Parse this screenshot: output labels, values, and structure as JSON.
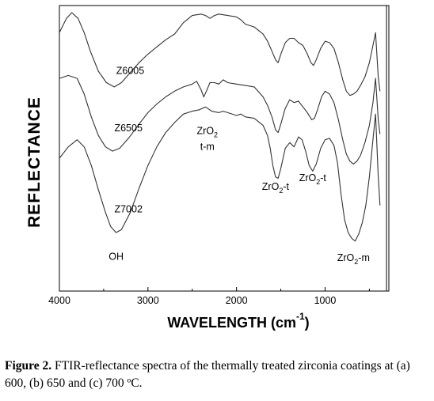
{
  "chart_data": {
    "type": "line",
    "xlabel_main": "WAVELENGTH (cm",
    "xlabel_sup": "-1",
    "xlabel_close": ")",
    "ylabel": "REFLECTANCE",
    "xlim": [
      4000,
      280
    ],
    "x_ticks": [
      4000,
      3000,
      2000,
      1000
    ],
    "x_tick_labels": [
      "4000",
      "3000",
      "2000",
      "1000"
    ],
    "y_ticks_shown": false,
    "grid": false,
    "series": [
      {
        "name": "Z6005",
        "points": [
          [
            4000,
            0.905
          ],
          [
            3920,
            0.955
          ],
          [
            3860,
            0.975
          ],
          [
            3790,
            0.955
          ],
          [
            3720,
            0.905
          ],
          [
            3650,
            0.84
          ],
          [
            3560,
            0.77
          ],
          [
            3470,
            0.73
          ],
          [
            3380,
            0.715
          ],
          [
            3300,
            0.73
          ],
          [
            3200,
            0.765
          ],
          [
            3100,
            0.8
          ],
          [
            3000,
            0.83
          ],
          [
            2900,
            0.855
          ],
          [
            2800,
            0.88
          ],
          [
            2700,
            0.9
          ],
          [
            2600,
            0.94
          ],
          [
            2500,
            0.965
          ],
          [
            2400,
            0.97
          ],
          [
            2350,
            0.965
          ],
          [
            2300,
            0.955
          ],
          [
            2250,
            0.965
          ],
          [
            2200,
            0.97
          ],
          [
            2100,
            0.965
          ],
          [
            2000,
            0.96
          ],
          [
            1950,
            0.95
          ],
          [
            1900,
            0.935
          ],
          [
            1800,
            0.925
          ],
          [
            1700,
            0.9
          ],
          [
            1650,
            0.875
          ],
          [
            1600,
            0.84
          ],
          [
            1560,
            0.81
          ],
          [
            1530,
            0.8
          ],
          [
            1500,
            0.83
          ],
          [
            1450,
            0.87
          ],
          [
            1400,
            0.885
          ],
          [
            1350,
            0.885
          ],
          [
            1300,
            0.87
          ],
          [
            1250,
            0.86
          ],
          [
            1200,
            0.83
          ],
          [
            1160,
            0.8
          ],
          [
            1130,
            0.79
          ],
          [
            1100,
            0.81
          ],
          [
            1050,
            0.85
          ],
          [
            1000,
            0.875
          ],
          [
            950,
            0.87
          ],
          [
            900,
            0.85
          ],
          [
            850,
            0.8
          ],
          [
            800,
            0.74
          ],
          [
            760,
            0.7
          ],
          [
            720,
            0.685
          ],
          [
            680,
            0.69
          ],
          [
            640,
            0.7
          ],
          [
            600,
            0.72
          ],
          [
            550,
            0.75
          ],
          [
            500,
            0.8
          ],
          [
            460,
            0.86
          ],
          [
            430,
            0.905
          ],
          [
            400,
            0.75
          ],
          [
            380,
            0.7
          ]
        ]
      },
      {
        "name": "Z6505",
        "points": [
          [
            4000,
            0.745
          ],
          [
            3900,
            0.755
          ],
          [
            3800,
            0.745
          ],
          [
            3720,
            0.69
          ],
          [
            3640,
            0.61
          ],
          [
            3560,
            0.545
          ],
          [
            3480,
            0.505
          ],
          [
            3400,
            0.49
          ],
          [
            3320,
            0.5
          ],
          [
            3220,
            0.535
          ],
          [
            3100,
            0.585
          ],
          [
            3000,
            0.625
          ],
          [
            2900,
            0.655
          ],
          [
            2800,
            0.68
          ],
          [
            2700,
            0.7
          ],
          [
            2600,
            0.715
          ],
          [
            2500,
            0.725
          ],
          [
            2450,
            0.735
          ],
          [
            2400,
            0.705
          ],
          [
            2370,
            0.68
          ],
          [
            2340,
            0.7
          ],
          [
            2300,
            0.73
          ],
          [
            2250,
            0.73
          ],
          [
            2200,
            0.725
          ],
          [
            2150,
            0.74
          ],
          [
            2100,
            0.73
          ],
          [
            2000,
            0.725
          ],
          [
            1900,
            0.72
          ],
          [
            1800,
            0.715
          ],
          [
            1700,
            0.68
          ],
          [
            1650,
            0.65
          ],
          [
            1600,
            0.61
          ],
          [
            1560,
            0.565
          ],
          [
            1530,
            0.555
          ],
          [
            1500,
            0.585
          ],
          [
            1450,
            0.64
          ],
          [
            1400,
            0.67
          ],
          [
            1350,
            0.66
          ],
          [
            1300,
            0.665
          ],
          [
            1250,
            0.645
          ],
          [
            1200,
            0.625
          ],
          [
            1150,
            0.6
          ],
          [
            1120,
            0.605
          ],
          [
            1080,
            0.64
          ],
          [
            1040,
            0.68
          ],
          [
            1000,
            0.7
          ],
          [
            950,
            0.69
          ],
          [
            900,
            0.66
          ],
          [
            850,
            0.6
          ],
          [
            800,
            0.53
          ],
          [
            760,
            0.48
          ],
          [
            720,
            0.455
          ],
          [
            680,
            0.445
          ],
          [
            640,
            0.455
          ],
          [
            600,
            0.475
          ],
          [
            550,
            0.52
          ],
          [
            500,
            0.58
          ],
          [
            460,
            0.66
          ],
          [
            430,
            0.745
          ],
          [
            400,
            0.6
          ],
          [
            380,
            0.55
          ]
        ]
      },
      {
        "name": "Z7002",
        "points": [
          [
            4000,
            0.465
          ],
          [
            3900,
            0.505
          ],
          [
            3800,
            0.53
          ],
          [
            3720,
            0.505
          ],
          [
            3640,
            0.44
          ],
          [
            3560,
            0.355
          ],
          [
            3480,
            0.275
          ],
          [
            3420,
            0.225
          ],
          [
            3360,
            0.205
          ],
          [
            3300,
            0.215
          ],
          [
            3200,
            0.275
          ],
          [
            3100,
            0.36
          ],
          [
            3000,
            0.44
          ],
          [
            2900,
            0.505
          ],
          [
            2800,
            0.555
          ],
          [
            2700,
            0.59
          ],
          [
            2600,
            0.62
          ],
          [
            2500,
            0.63
          ],
          [
            2420,
            0.635
          ],
          [
            2350,
            0.645
          ],
          [
            2280,
            0.63
          ],
          [
            2200,
            0.625
          ],
          [
            2150,
            0.63
          ],
          [
            2100,
            0.625
          ],
          [
            2000,
            0.615
          ],
          [
            1950,
            0.62
          ],
          [
            1900,
            0.61
          ],
          [
            1800,
            0.605
          ],
          [
            1700,
            0.58
          ],
          [
            1650,
            0.545
          ],
          [
            1620,
            0.5
          ],
          [
            1590,
            0.44
          ],
          [
            1560,
            0.4
          ],
          [
            1530,
            0.395
          ],
          [
            1500,
            0.43
          ],
          [
            1450,
            0.5
          ],
          [
            1400,
            0.52
          ],
          [
            1350,
            0.505
          ],
          [
            1300,
            0.54
          ],
          [
            1260,
            0.53
          ],
          [
            1220,
            0.49
          ],
          [
            1180,
            0.44
          ],
          [
            1140,
            0.42
          ],
          [
            1100,
            0.445
          ],
          [
            1050,
            0.5
          ],
          [
            1000,
            0.53
          ],
          [
            950,
            0.535
          ],
          [
            900,
            0.51
          ],
          [
            860,
            0.45
          ],
          [
            820,
            0.34
          ],
          [
            780,
            0.25
          ],
          [
            740,
            0.205
          ],
          [
            700,
            0.185
          ],
          [
            660,
            0.175
          ],
          [
            620,
            0.2
          ],
          [
            580,
            0.24
          ],
          [
            540,
            0.3
          ],
          [
            500,
            0.4
          ],
          [
            460,
            0.53
          ],
          [
            430,
            0.62
          ],
          [
            400,
            0.4
          ],
          [
            380,
            0.3
          ]
        ]
      }
    ],
    "annotations": [
      {
        "id": "z6005",
        "text": "Z6005",
        "x": 3200,
        "y": 0.76
      },
      {
        "id": "z6505",
        "text": "Z6505",
        "x": 3220,
        "y": 0.56
      },
      {
        "id": "z7002",
        "text": "Z7002",
        "x": 3220,
        "y": 0.275
      },
      {
        "id": "zro2-tm",
        "text": "ZrO",
        "sub": "2",
        "line2": "t-m",
        "x": 2330,
        "y": 0.55
      },
      {
        "id": "zro2-t-1",
        "text": "ZrO",
        "sub": "2",
        "suffix": "-t",
        "x": 1560,
        "y": 0.355
      },
      {
        "id": "zro2-t-2",
        "text": "ZrO",
        "sub": "2",
        "suffix": "-t",
        "x": 1140,
        "y": 0.385
      },
      {
        "id": "oh",
        "text": "OH",
        "x": 3360,
        "y": 0.11
      },
      {
        "id": "zro2-m",
        "text": "ZrO",
        "sub": "2",
        "suffix": "-m",
        "x": 680,
        "y": 0.105
      }
    ]
  },
  "caption": {
    "label": "Figure 2.",
    "text": " FTIR-reflectance spectra of the thermally treated zirconia coatings at (a) 600, (b) 650 and (c) 700 ºC."
  }
}
